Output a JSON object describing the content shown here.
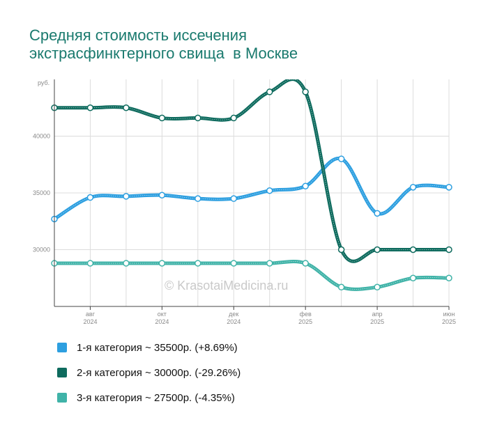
{
  "header": {
    "title_line1": "Средняя стоимость иссечения",
    "title_line2": "экстрасфинктерного свища  в Москве"
  },
  "watermark": "© KrasotaiMedicina.ru",
  "legend": [
    {
      "label": "1-я категория ~ 35500р. (+8.69%)",
      "color": "#2d9fe0"
    },
    {
      "label": "2-я категория ~ 30000р. (-29.26%)",
      "color": "#0e6b5e"
    },
    {
      "label": "3-я категория ~ 27500р. (-4.35%)",
      "color": "#40b3a8"
    }
  ],
  "chart_data": {
    "type": "line",
    "x": [
      "2024-07",
      "2024-08",
      "2024-09",
      "2024-10",
      "2024-11",
      "2024-12",
      "2025-01",
      "2025-02",
      "2025-03",
      "2025-04",
      "2025-05",
      "2025-06"
    ],
    "x_tick_labels": [
      {
        "month": "авг",
        "year": "2024",
        "index": 1
      },
      {
        "month": "окт",
        "year": "2024",
        "index": 3
      },
      {
        "month": "дек",
        "year": "2024",
        "index": 5
      },
      {
        "month": "фев",
        "year": "2025",
        "index": 7
      },
      {
        "month": "апр",
        "year": "2025",
        "index": 9
      },
      {
        "month": "июн",
        "year": "2025",
        "index": 11
      }
    ],
    "ylabel": "руб.",
    "ylim": [
      25000,
      45000
    ],
    "y_ticks": [
      30000,
      35000,
      40000
    ],
    "grid": true,
    "series": [
      {
        "color": "#2d9fe0",
        "values": [
          32700,
          34600,
          34700,
          34800,
          34500,
          34500,
          35200,
          35600,
          38000,
          33200,
          35500,
          35500
        ]
      },
      {
        "color": "#0e6b5e",
        "values": [
          42500,
          42500,
          42500,
          41600,
          41600,
          41600,
          43900,
          43900,
          30000,
          30000,
          30000,
          30000
        ]
      },
      {
        "color": "#40b3a8",
        "values": [
          28800,
          28800,
          28800,
          28800,
          28800,
          28800,
          28800,
          28800,
          26700,
          26700,
          27500,
          27500
        ]
      }
    ]
  }
}
